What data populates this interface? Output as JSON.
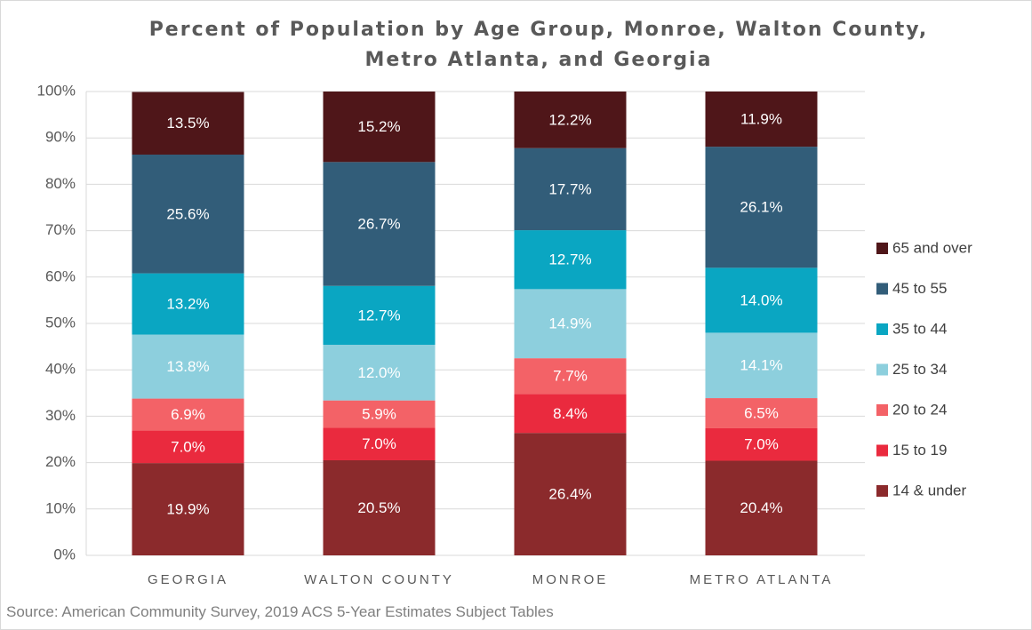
{
  "chart_data": {
    "type": "stacked_bar",
    "title": "Percent of Population by Age Group, Monroe, Walton County, Metro Atlanta, and Georgia",
    "categories": [
      "GEORGIA",
      "WALTON COUNTY",
      "MONROE",
      "METRO ATLANTA"
    ],
    "series": [
      {
        "name": "14 & under",
        "color": "#8b2a2c",
        "values": [
          19.9,
          20.5,
          26.4,
          20.4
        ],
        "value_labels": [
          "19.9%",
          "20.5%",
          "26.4%",
          "20.4%"
        ]
      },
      {
        "name": "15 to 19",
        "color": "#ea2a3e",
        "values": [
          7.0,
          7.0,
          8.4,
          7.0
        ],
        "value_labels": [
          "7.0%",
          "7.0%",
          "8.4%",
          "7.0%"
        ]
      },
      {
        "name": "20 to 24",
        "color": "#f36267",
        "values": [
          6.9,
          5.9,
          7.7,
          6.5
        ],
        "value_labels": [
          "6.9%",
          "5.9%",
          "7.7%",
          "6.5%"
        ]
      },
      {
        "name": "25 to 34",
        "color": "#8dcfdd",
        "values": [
          13.8,
          12.0,
          14.9,
          14.1
        ],
        "value_labels": [
          "13.8%",
          "12.0%",
          "14.9%",
          "14.1%"
        ]
      },
      {
        "name": "35 to 44",
        "color": "#0aa6c2",
        "values": [
          13.2,
          12.7,
          12.7,
          14.0
        ],
        "value_labels": [
          "13.2%",
          "12.7%",
          "12.7%",
          "14.0%"
        ]
      },
      {
        "name": "45 to 55",
        "color": "#325d79",
        "values": [
          25.6,
          26.7,
          17.7,
          26.1
        ],
        "value_labels": [
          "25.6%",
          "26.7%",
          "17.7%",
          "26.1%"
        ]
      },
      {
        "name": "65 and over",
        "color": "#4f1619",
        "values": [
          13.5,
          15.2,
          12.2,
          11.9
        ],
        "value_labels": [
          "13.5%",
          "15.2%",
          "12.2%",
          "11.9%"
        ]
      }
    ],
    "ylim": [
      0,
      100
    ],
    "yticks": [
      {
        "value": 0,
        "label": "0%"
      },
      {
        "value": 10,
        "label": "10%"
      },
      {
        "value": 20,
        "label": "20%"
      },
      {
        "value": 30,
        "label": "30%"
      },
      {
        "value": 40,
        "label": "40%"
      },
      {
        "value": 50,
        "label": "50%"
      },
      {
        "value": 60,
        "label": "60%"
      },
      {
        "value": 70,
        "label": "70%"
      },
      {
        "value": 80,
        "label": "80%"
      },
      {
        "value": 90,
        "label": "90%"
      },
      {
        "value": 100,
        "label": "100%"
      }
    ],
    "grid": true,
    "legend": "right",
    "source": "Source: American Community Survey, 2019 ACS 5-Year Estimates  Subject Tables"
  }
}
